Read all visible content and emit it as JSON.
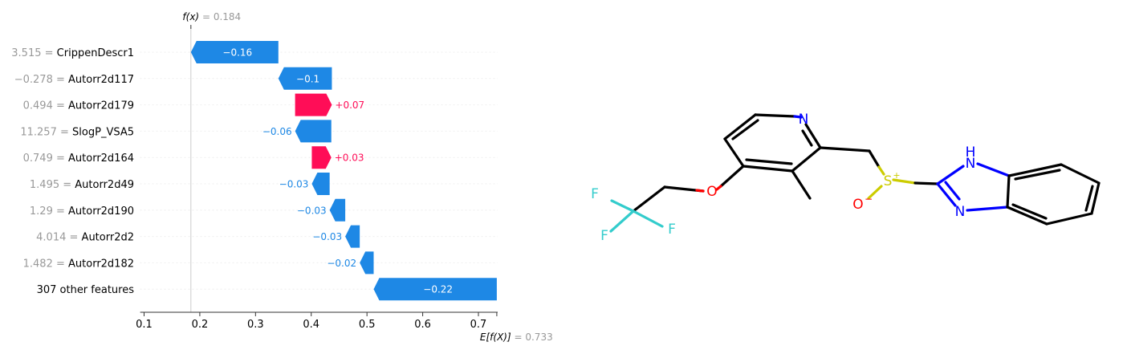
{
  "chart_data": {
    "type": "waterfall",
    "fx_label": "f(x)",
    "fx_value": "0.184",
    "ex_label": "E[f(X)]",
    "ex_value": "0.733",
    "xlim": [
      0.1,
      0.735
    ],
    "xticks": [
      0.1,
      0.2,
      0.3,
      0.4,
      0.5,
      0.6,
      0.7
    ],
    "xtick_labels": [
      "0.1",
      "0.2",
      "0.3",
      "0.4",
      "0.5",
      "0.6",
      "0.7"
    ],
    "colors": {
      "positive": "#ff0d57",
      "negative": "#1e88e5",
      "value_text": "#999999",
      "label_text": "#000000"
    },
    "features": [
      {
        "value": "3.515",
        "name": "CrippenDescr1",
        "shap": -0.16,
        "label": "−0.16",
        "left": 0.184,
        "right": 0.341
      },
      {
        "value": "−0.278",
        "name": "Autorr2d117",
        "shap": -0.1,
        "label": "−0.1",
        "left": 0.341,
        "right": 0.437
      },
      {
        "value": "0.494",
        "name": "Autorr2d179",
        "shap": 0.07,
        "label": "+0.07",
        "left": 0.371,
        "right": 0.437
      },
      {
        "value": "11.257",
        "name": "SlogP_VSA5",
        "shap": -0.06,
        "label": "−0.06",
        "left": 0.371,
        "right": 0.436
      },
      {
        "value": "0.749",
        "name": "Autorr2d164",
        "shap": 0.03,
        "label": "+0.03",
        "left": 0.401,
        "right": 0.436
      },
      {
        "value": "1.495",
        "name": "Autorr2d49",
        "shap": -0.03,
        "label": "−0.03",
        "left": 0.401,
        "right": 0.433
      },
      {
        "value": "1.29",
        "name": "Autorr2d190",
        "shap": -0.03,
        "label": "−0.03",
        "left": 0.433,
        "right": 0.461
      },
      {
        "value": "4.014",
        "name": "Autorr2d2",
        "shap": -0.03,
        "label": "−0.03",
        "left": 0.461,
        "right": 0.487
      },
      {
        "value": "1.482",
        "name": "Autorr2d182",
        "shap": -0.02,
        "label": "−0.02",
        "left": 0.487,
        "right": 0.512
      },
      {
        "value": "",
        "name": "307 other features",
        "shap": -0.22,
        "label": "−0.22",
        "left": 0.512,
        "right": 0.733
      }
    ]
  },
  "molecule": {
    "atoms": {
      "N1": "N",
      "O1": "O",
      "F1": "F",
      "F2": "F",
      "F3": "F",
      "S": "S",
      "S_charge": "+",
      "O2": "O",
      "O2_charge": "−",
      "NH": "N",
      "H": "H",
      "N3": "N"
    },
    "colors": {
      "bond": "#000000",
      "N": "#0000ff",
      "O": "#ff0000",
      "F": "#33cccc",
      "S": "#cccc00"
    }
  }
}
